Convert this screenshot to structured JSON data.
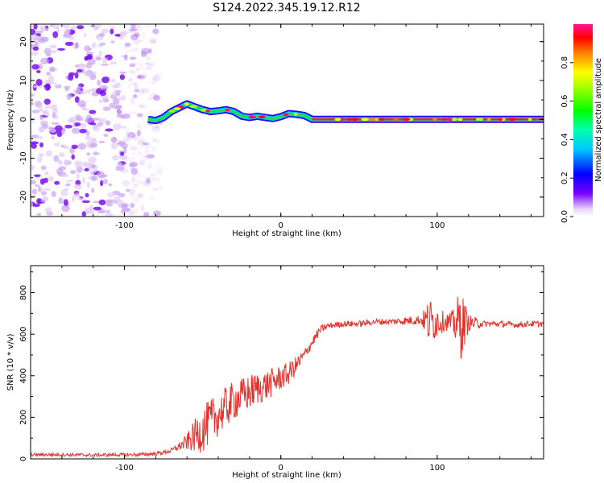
{
  "figure": {
    "title": "S124.2022.345.19.12.R12"
  },
  "chart_data": [
    {
      "type": "heatmap",
      "xlabel": "Height of straight line (km)",
      "ylabel": "Frequency (Hz)",
      "xlim": [
        -160,
        168
      ],
      "ylim": [
        -25,
        24.5
      ],
      "x_ticks": [
        -100,
        0,
        100
      ],
      "y_ticks": [
        -20,
        -10,
        0,
        10,
        20
      ],
      "colorbar": {
        "label": "Normalized spectral amplitude",
        "range": [
          0,
          1
        ],
        "ticks": [
          0.0,
          0.2,
          0.4,
          0.6,
          0.8
        ],
        "colormap": [
          "#f0e8f5",
          "#6a00ff",
          "#0000ff",
          "#00ffff",
          "#00ff00",
          "#ffff00",
          "#ff0000",
          "#ff1493"
        ]
      },
      "noise_region": {
        "x_range": [
          -160,
          -85
        ],
        "freq_range": [
          -25,
          24.5
        ],
        "amplitude": 0.2
      },
      "ridge": [
        [
          -85,
          0.0
        ],
        [
          -80,
          -0.3
        ],
        [
          -75,
          0.5
        ],
        [
          -70,
          2.0
        ],
        [
          -65,
          3.0
        ],
        [
          -60,
          4.0
        ],
        [
          -55,
          3.2
        ],
        [
          -50,
          2.5
        ],
        [
          -45,
          2.0
        ],
        [
          -40,
          2.2
        ],
        [
          -35,
          2.5
        ],
        [
          -30,
          2.0
        ],
        [
          -25,
          0.8
        ],
        [
          -20,
          0.5
        ],
        [
          -15,
          0.8
        ],
        [
          -10,
          0.5
        ],
        [
          -5,
          0.2
        ],
        [
          0,
          0.7
        ],
        [
          5,
          1.5
        ],
        [
          10,
          1.3
        ],
        [
          15,
          1.0
        ],
        [
          20,
          0.0
        ],
        [
          30,
          0.0
        ],
        [
          50,
          0.0
        ],
        [
          70,
          0.0
        ],
        [
          90,
          0.0
        ],
        [
          100,
          0.0
        ],
        [
          110,
          0.0
        ],
        [
          168,
          0.0
        ]
      ]
    },
    {
      "type": "line",
      "xlabel": "Height of straight line (km)",
      "ylabel": "SNR (10 * v/v)",
      "xlim": [
        -160,
        168
      ],
      "ylim": [
        0,
        930
      ],
      "x_ticks": [
        -100,
        0,
        100
      ],
      "y_ticks": [
        0,
        200,
        400,
        600,
        800
      ],
      "color": "#e8302a",
      "x": [
        -160,
        -140,
        -120,
        -100,
        -90,
        -80,
        -75,
        -70,
        -65,
        -60,
        -55,
        -50,
        -45,
        -40,
        -35,
        -30,
        -25,
        -20,
        -15,
        -10,
        -5,
        0,
        5,
        10,
        15,
        20,
        25,
        30,
        40,
        50,
        60,
        70,
        80,
        90,
        95,
        100,
        105,
        110,
        115,
        120,
        130,
        140,
        150,
        160,
        168
      ],
      "values": [
        20,
        20,
        18,
        20,
        20,
        25,
        30,
        40,
        60,
        80,
        110,
        140,
        180,
        210,
        250,
        280,
        300,
        320,
        340,
        350,
        370,
        390,
        410,
        450,
        500,
        560,
        620,
        640,
        650,
        650,
        660,
        660,
        665,
        670,
        660,
        665,
        660,
        655,
        650,
        655,
        650,
        650,
        645,
        650,
        650
      ],
      "noise_amplitude": [
        8,
        8,
        8,
        8,
        8,
        10,
        10,
        12,
        20,
        40,
        80,
        110,
        110,
        100,
        100,
        95,
        90,
        85,
        80,
        75,
        70,
        60,
        55,
        45,
        30,
        25,
        20,
        15,
        15,
        15,
        15,
        15,
        20,
        25,
        120,
        80,
        40,
        60,
        180,
        40,
        15,
        15,
        15,
        15,
        15
      ]
    }
  ]
}
